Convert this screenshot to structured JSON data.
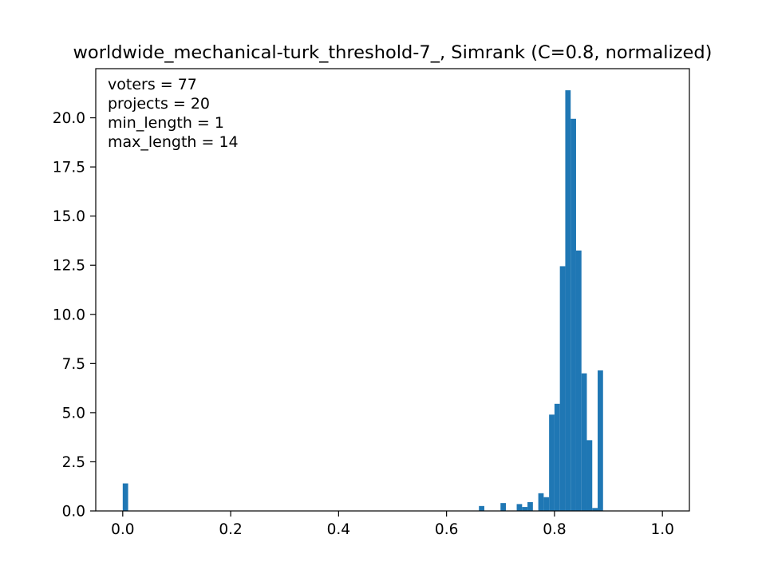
{
  "chart_data": {
    "type": "bar",
    "title": "worldwide_mechanical-turk_threshold-7_, Simrank (C=0.8, normalized)",
    "xlabel": "",
    "ylabel": "",
    "xlim": [
      -0.05,
      1.05
    ],
    "ylim": [
      0,
      22.5
    ],
    "xticks": [
      0.0,
      0.2,
      0.4,
      0.6,
      0.8,
      1.0
    ],
    "xtick_labels": [
      "0.0",
      "0.2",
      "0.4",
      "0.6",
      "0.8",
      "1.0"
    ],
    "yticks": [
      0.0,
      2.5,
      5.0,
      7.5,
      10.0,
      12.5,
      15.0,
      17.5,
      20.0
    ],
    "ytick_labels": [
      "0.0",
      "2.5",
      "5.0",
      "7.5",
      "10.0",
      "12.5",
      "15.0",
      "17.5",
      "20.0"
    ],
    "bin_width": 0.01,
    "bar_color": "#1f77b4",
    "bins": [
      {
        "x": 0.0,
        "value": 1.4
      },
      {
        "x": 0.66,
        "value": 0.25
      },
      {
        "x": 0.7,
        "value": 0.4
      },
      {
        "x": 0.73,
        "value": 0.35
      },
      {
        "x": 0.74,
        "value": 0.2
      },
      {
        "x": 0.75,
        "value": 0.45
      },
      {
        "x": 0.77,
        "value": 0.9
      },
      {
        "x": 0.78,
        "value": 0.7
      },
      {
        "x": 0.79,
        "value": 4.9
      },
      {
        "x": 0.8,
        "value": 5.45
      },
      {
        "x": 0.81,
        "value": 12.45
      },
      {
        "x": 0.82,
        "value": 21.4
      },
      {
        "x": 0.83,
        "value": 19.95
      },
      {
        "x": 0.84,
        "value": 13.25
      },
      {
        "x": 0.85,
        "value": 7.0
      },
      {
        "x": 0.86,
        "value": 3.6
      },
      {
        "x": 0.87,
        "value": 0.15
      },
      {
        "x": 0.88,
        "value": 7.15
      }
    ],
    "annotations": [
      "voters = 77",
      "projects = 20",
      "min_length = 1",
      "max_length = 14"
    ],
    "grid": false,
    "legend": "none"
  }
}
